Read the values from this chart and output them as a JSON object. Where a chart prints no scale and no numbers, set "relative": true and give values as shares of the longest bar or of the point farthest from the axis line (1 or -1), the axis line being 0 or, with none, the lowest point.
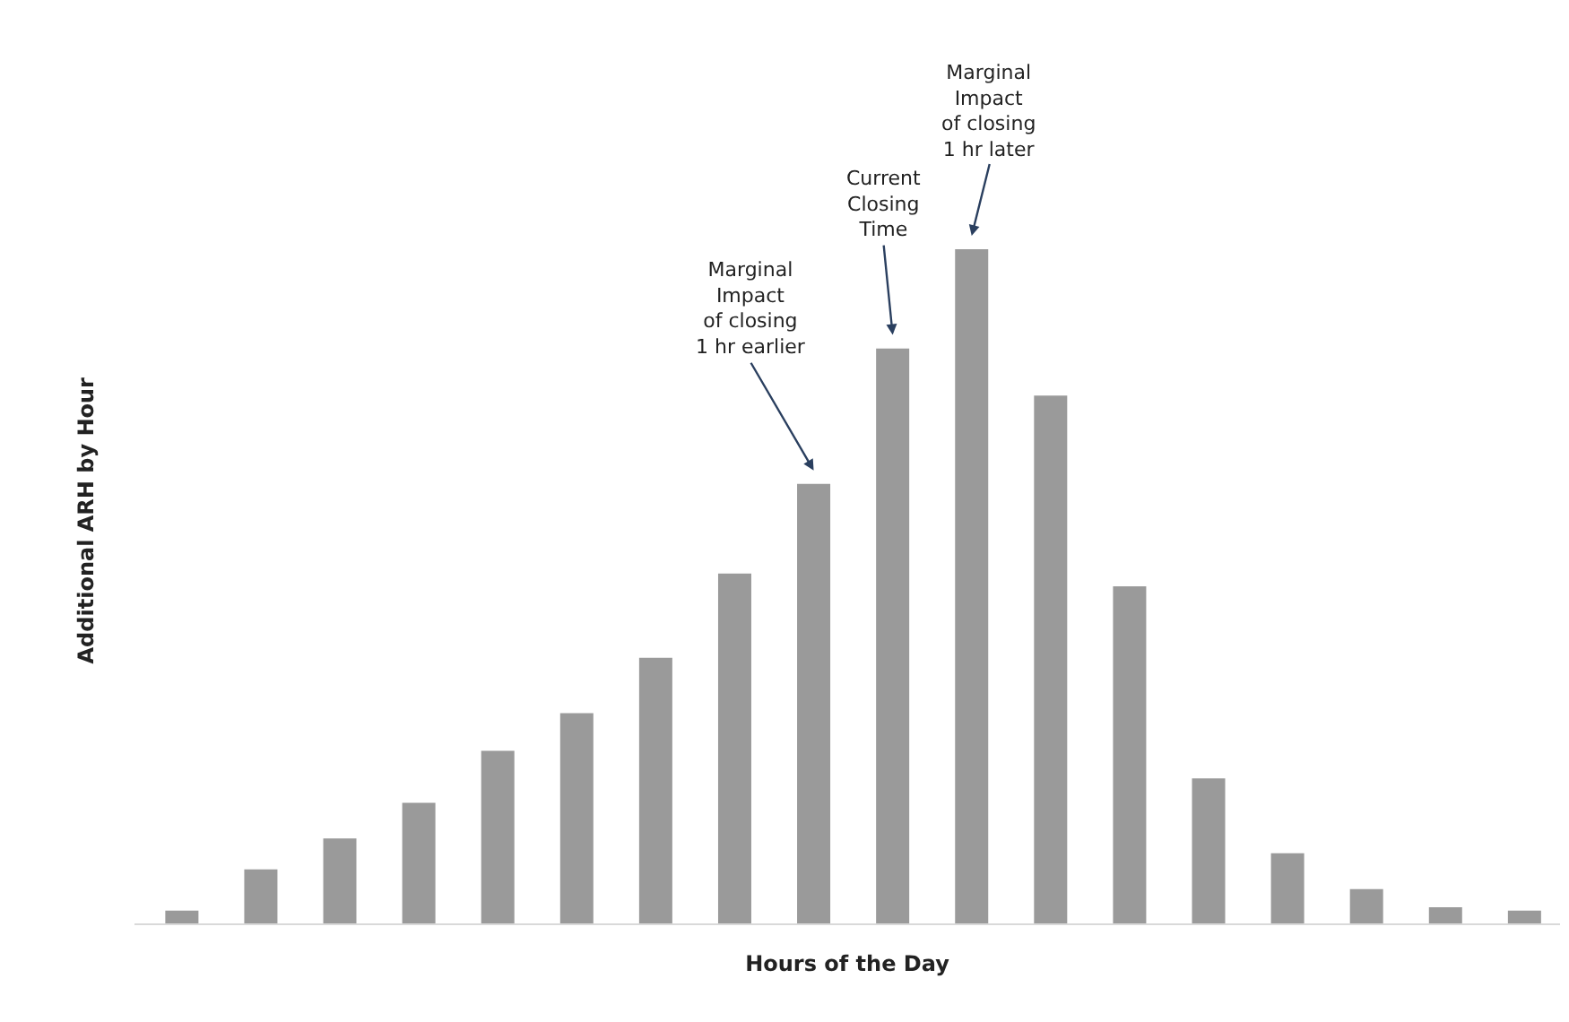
{
  "chart_data": {
    "type": "bar",
    "relative": true,
    "xlabel": "Hours of the Day",
    "ylabel": "Additional ARH by Hour",
    "categories": [
      null,
      null,
      null,
      null,
      null,
      null,
      null,
      null,
      null,
      null,
      null,
      null,
      null,
      null,
      null,
      null,
      null,
      null
    ],
    "values": [
      0.019,
      0.08,
      0.126,
      0.179,
      0.256,
      0.312,
      0.394,
      0.519,
      0.652,
      0.853,
      1,
      0.783,
      0.5,
      0.215,
      0.104,
      0.051,
      0.024,
      0.019
    ],
    "color": "#9a9a9a",
    "annotations": [
      "Marginal\nImpact\nof closing\n1 hr earlier",
      "Current\nClosing\nTime",
      "Marginal\nImpact\nof closing\n1 hr later"
    ]
  }
}
